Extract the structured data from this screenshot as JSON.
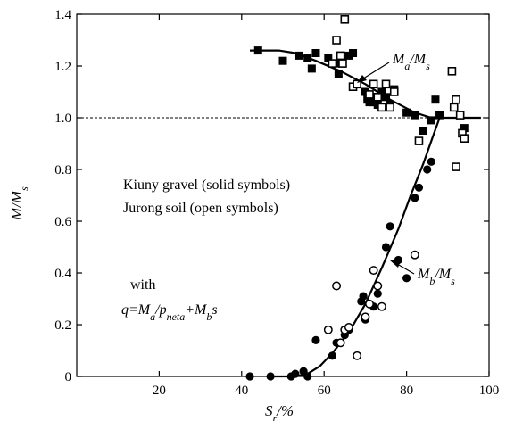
{
  "chart_data": {
    "type": "scatter",
    "xlabel": "Sr/%",
    "ylabel": "M/Ms",
    "xlim": [
      0,
      100
    ],
    "ylim": [
      0,
      1.4
    ],
    "x_ticks": [
      "20",
      "40",
      "60",
      "80",
      "100"
    ],
    "y_ticks": [
      "0",
      "0.2",
      "0.4",
      "0.6",
      "0.8",
      "1.0",
      "1.2",
      "1.4"
    ],
    "reference_line": {
      "y": 1.0,
      "style": "dashed"
    },
    "annotations": {
      "legend_line1": "Kiuny gravel (solid symbols)",
      "legend_line2": "Jurong soil (open symbols)",
      "with": "with",
      "equation": "q=Ma/pneta+Mbs",
      "ma_curve_label": "Ma/Ms",
      "mb_curve_label": "Mb/Ms"
    },
    "series": [
      {
        "marker": "square-solid",
        "points": [
          [
            44,
            1.26
          ],
          [
            50,
            1.22
          ],
          [
            54,
            1.24
          ],
          [
            56,
            1.23
          ],
          [
            57,
            1.19
          ],
          [
            58,
            1.25
          ],
          [
            61,
            1.23
          ],
          [
            63,
            1.21
          ],
          [
            63.5,
            1.17
          ],
          [
            66,
            1.24
          ],
          [
            67,
            1.25
          ],
          [
            70,
            1.1
          ],
          [
            70.5,
            1.07
          ],
          [
            71,
            1.06
          ],
          [
            72,
            1.06
          ],
          [
            73,
            1.05
          ],
          [
            74,
            1.1
          ],
          [
            75,
            1.08
          ],
          [
            76,
            1.05
          ],
          [
            77,
            1.11
          ],
          [
            80,
            1.02
          ],
          [
            82,
            1.01
          ],
          [
            84,
            0.95
          ],
          [
            86,
            0.99
          ],
          [
            87,
            1.07
          ],
          [
            88,
            1.01
          ],
          [
            94,
            0.96
          ]
        ]
      },
      {
        "marker": "square-open",
        "points": [
          [
            62,
            1.21
          ],
          [
            63,
            1.3
          ],
          [
            64,
            1.24
          ],
          [
            64.5,
            1.21
          ],
          [
            65,
            1.38
          ],
          [
            67,
            1.12
          ],
          [
            68,
            1.13
          ],
          [
            71,
            1.09
          ],
          [
            72,
            1.13
          ],
          [
            73,
            1.08
          ],
          [
            74,
            1.04
          ],
          [
            75,
            1.13
          ],
          [
            76,
            1.04
          ],
          [
            77,
            1.1
          ],
          [
            83,
            0.91
          ],
          [
            91,
            1.18
          ],
          [
            91.5,
            1.04
          ],
          [
            92,
            0.81
          ],
          [
            92,
            1.07
          ],
          [
            93,
            1.01
          ],
          [
            93.5,
            0.94
          ],
          [
            94,
            0.92
          ]
        ]
      },
      {
        "marker": "circle-solid",
        "points": [
          [
            42,
            0.0
          ],
          [
            47,
            0.0
          ],
          [
            52,
            0.0
          ],
          [
            53,
            0.01
          ],
          [
            55,
            0.02
          ],
          [
            56,
            0.0
          ],
          [
            58,
            0.14
          ],
          [
            61,
            0.18
          ],
          [
            62,
            0.08
          ],
          [
            63,
            0.13
          ],
          [
            65,
            0.16
          ],
          [
            66,
            0.18
          ],
          [
            69,
            0.29
          ],
          [
            69.5,
            0.31
          ],
          [
            70,
            0.22
          ],
          [
            72,
            0.27
          ],
          [
            73,
            0.32
          ],
          [
            75,
            0.5
          ],
          [
            76,
            0.58
          ],
          [
            78,
            0.45
          ],
          [
            80,
            0.38
          ],
          [
            82,
            0.69
          ],
          [
            83,
            0.73
          ],
          [
            85,
            0.8
          ],
          [
            86,
            0.83
          ]
        ]
      },
      {
        "marker": "circle-open",
        "points": [
          [
            61,
            0.18
          ],
          [
            63,
            0.35
          ],
          [
            64,
            0.13
          ],
          [
            65,
            0.18
          ],
          [
            66,
            0.19
          ],
          [
            68,
            0.08
          ],
          [
            70,
            0.23
          ],
          [
            71,
            0.28
          ],
          [
            72,
            0.41
          ],
          [
            73,
            0.35
          ],
          [
            74,
            0.27
          ],
          [
            82,
            0.47
          ]
        ]
      }
    ],
    "curves": [
      {
        "name": "Ma/Ms",
        "points": [
          [
            42,
            1.26
          ],
          [
            49,
            1.26
          ],
          [
            53,
            1.25
          ],
          [
            58,
            1.22
          ],
          [
            64,
            1.18
          ],
          [
            70,
            1.13
          ],
          [
            76,
            1.07
          ],
          [
            82,
            1.02
          ],
          [
            86,
            1.0
          ],
          [
            88,
            1.0
          ],
          [
            98,
            1.0
          ]
        ]
      },
      {
        "name": "Mb/Ms",
        "points": [
          [
            48,
            0.0
          ],
          [
            53,
            0.0
          ],
          [
            56,
            0.01
          ],
          [
            59,
            0.04
          ],
          [
            62,
            0.09
          ],
          [
            66,
            0.17
          ],
          [
            70,
            0.28
          ],
          [
            74,
            0.42
          ],
          [
            78,
            0.57
          ],
          [
            81,
            0.7
          ],
          [
            84,
            0.82
          ],
          [
            86,
            0.91
          ],
          [
            88,
            1.0
          ]
        ]
      }
    ]
  }
}
